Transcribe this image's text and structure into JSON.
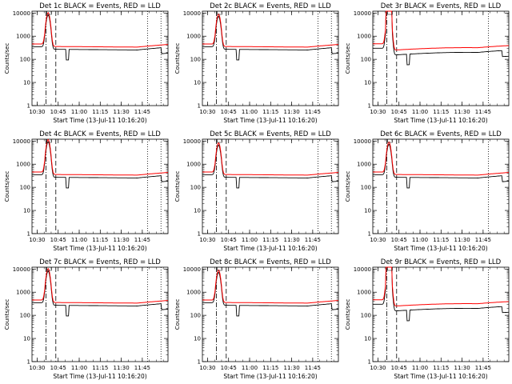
{
  "colors": {
    "events": "#000000",
    "lld": "#ff0000",
    "background": "#ffffff"
  },
  "chart_data": [
    {
      "type": "line",
      "title": "Det 1c BLACK = Events, RED = LLD",
      "xlabel": "Start Time (13-Jul-11 10:16:20)",
      "ylabel": "Counts/sec",
      "xticks": [
        "10:30",
        "10:45",
        "11:00",
        "11:15",
        "11:30",
        "11:45"
      ],
      "yticks": [
        "1",
        "10",
        "100",
        "1000",
        "10000"
      ],
      "yscale": "log",
      "ylim": [
        1,
        12000
      ],
      "xlim_minutes": [
        10,
        107
      ],
      "flare_peak": 8000,
      "series": [
        {
          "name": "Events",
          "color": "#000000"
        },
        {
          "name": "LLD",
          "color": "#ff0000"
        }
      ],
      "vlines": {
        "dashdot": 20,
        "dashed": 27,
        "dotted": [
          92.5,
          102
        ]
      }
    },
    {
      "type": "line",
      "title": "Det 2c BLACK = Events, RED = LLD",
      "xlabel": "Start Time (13-Jul-11 10:16:20)",
      "ylabel": "Counts/sec",
      "xticks": [
        "10:30",
        "10:45",
        "11:00",
        "11:15",
        "11:30",
        "11:45"
      ],
      "yticks": [
        "1",
        "10",
        "100",
        "1000",
        "10000"
      ],
      "yscale": "log",
      "ylim": [
        1,
        12000
      ],
      "xlim_minutes": [
        10,
        107
      ],
      "flare_peak": 7000,
      "series": [
        {
          "name": "Events",
          "color": "#000000"
        },
        {
          "name": "LLD",
          "color": "#ff0000"
        }
      ],
      "vlines": {
        "dashdot": 20,
        "dashed": 27,
        "dotted": [
          92.5,
          102
        ]
      }
    },
    {
      "type": "line",
      "title": "Det 3r BLACK = Events, RED = LLD",
      "xlabel": "Start Time (13-Jul-11 10:16:20)",
      "ylabel": "Counts/sec",
      "xticks": [
        "10:30",
        "10:45",
        "11:00",
        "11:15",
        "11:30",
        "11:45"
      ],
      "yticks": [
        "1",
        "10",
        "100",
        "1000",
        "10000"
      ],
      "yscale": "log",
      "ylim": [
        1,
        12000
      ],
      "xlim_minutes": [
        10,
        107
      ],
      "flare_peak": 12000,
      "series": [
        {
          "name": "Events",
          "color": "#000000"
        },
        {
          "name": "LLD",
          "color": "#ff0000"
        }
      ],
      "vlines": {
        "dashdot": 20,
        "dashed": 27,
        "dotted": [
          92.5
        ]
      }
    },
    {
      "type": "line",
      "title": "Det 4c BLACK = Events, RED = LLD",
      "xlabel": "Start Time (13-Jul-11 10:16:20)",
      "ylabel": "Counts/sec",
      "xticks": [
        "10:30",
        "10:45",
        "11:00",
        "11:15",
        "11:30",
        "11:45"
      ],
      "yticks": [
        "1",
        "10",
        "100",
        "1000",
        "10000"
      ],
      "yscale": "log",
      "ylim": [
        1,
        12000
      ],
      "xlim_minutes": [
        10,
        107
      ],
      "flare_peak": 9000,
      "series": [
        {
          "name": "Events",
          "color": "#000000"
        },
        {
          "name": "LLD",
          "color": "#ff0000"
        }
      ],
      "vlines": {
        "dashdot": 20,
        "dashed": 27,
        "dotted": [
          92.5,
          102
        ]
      }
    },
    {
      "type": "line",
      "title": "Det 5c BLACK = Events, RED = LLD",
      "xlabel": "Start Time (13-Jul-11 10:16:20)",
      "ylabel": "Counts/sec",
      "xticks": [
        "10:30",
        "10:45",
        "11:00",
        "11:15",
        "11:30",
        "11:45"
      ],
      "yticks": [
        "1",
        "10",
        "100",
        "1000",
        "10000"
      ],
      "yscale": "log",
      "ylim": [
        1,
        12000
      ],
      "xlim_minutes": [
        10,
        107
      ],
      "flare_peak": 6500,
      "series": [
        {
          "name": "Events",
          "color": "#000000"
        },
        {
          "name": "LLD",
          "color": "#ff0000"
        }
      ],
      "vlines": {
        "dashdot": 20,
        "dashed": 27,
        "dotted": [
          92.5,
          102
        ]
      }
    },
    {
      "type": "line",
      "title": "Det 6c BLACK = Events, RED = LLD",
      "xlabel": "Start Time (13-Jul-11 10:16:20)",
      "ylabel": "Counts/sec",
      "xticks": [
        "10:30",
        "10:45",
        "11:00",
        "11:15",
        "11:30",
        "11:45"
      ],
      "yticks": [
        "1",
        "10",
        "100",
        "1000",
        "10000"
      ],
      "yscale": "log",
      "ylim": [
        1,
        12000
      ],
      "xlim_minutes": [
        10,
        107
      ],
      "flare_peak": 7000,
      "series": [
        {
          "name": "Events",
          "color": "#000000"
        },
        {
          "name": "LLD",
          "color": "#ff0000"
        }
      ],
      "vlines": {
        "dashdot": 20,
        "dashed": 27,
        "dotted": [
          92.5
        ]
      }
    },
    {
      "type": "line",
      "title": "Det 7c BLACK = Events, RED = LLD",
      "xlabel": "Start Time (13-Jul-11 10:16:20)",
      "ylabel": "Counts/sec",
      "xticks": [
        "10:30",
        "10:45",
        "11:00",
        "11:15",
        "11:30",
        "11:45"
      ],
      "yticks": [
        "1",
        "10",
        "100",
        "1000",
        "10000"
      ],
      "yscale": "log",
      "ylim": [
        1,
        12000
      ],
      "xlim_minutes": [
        10,
        107
      ],
      "flare_peak": 8000,
      "series": [
        {
          "name": "Events",
          "color": "#000000"
        },
        {
          "name": "LLD",
          "color": "#ff0000"
        }
      ],
      "vlines": {
        "dashdot": 20,
        "dashed": 27,
        "dotted": [
          92.5,
          102
        ]
      }
    },
    {
      "type": "line",
      "title": "Det 8c BLACK = Events, RED = LLD",
      "xlabel": "Start Time (13-Jul-11 10:16:20)",
      "ylabel": "Counts/sec",
      "xticks": [
        "10:30",
        "10:45",
        "11:00",
        "11:15",
        "11:30",
        "11:45"
      ],
      "yticks": [
        "1",
        "10",
        "100",
        "1000",
        "10000"
      ],
      "yscale": "log",
      "ylim": [
        1,
        12000
      ],
      "xlim_minutes": [
        10,
        107
      ],
      "flare_peak": 7000,
      "series": [
        {
          "name": "Events",
          "color": "#000000"
        },
        {
          "name": "LLD",
          "color": "#ff0000"
        }
      ],
      "vlines": {
        "dashdot": 20,
        "dashed": 27,
        "dotted": [
          92.5,
          102
        ]
      }
    },
    {
      "type": "line",
      "title": "Det 9r BLACK = Events, RED = LLD",
      "xlabel": "Start Time (13-Jul-11 10:16:20)",
      "ylabel": "Counts/sec",
      "xticks": [
        "10:30",
        "10:45",
        "11:00",
        "11:15",
        "11:30",
        "11:45"
      ],
      "yticks": [
        "1",
        "10",
        "100",
        "1000",
        "10000"
      ],
      "yscale": "log",
      "ylim": [
        1,
        12000
      ],
      "xlim_minutes": [
        10,
        107
      ],
      "flare_peak": 12000,
      "series": [
        {
          "name": "Events",
          "color": "#000000"
        },
        {
          "name": "LLD",
          "color": "#ff0000"
        }
      ],
      "vlines": {
        "dashdot": 20,
        "dashed": 27,
        "dotted": [
          92.5
        ]
      }
    }
  ]
}
